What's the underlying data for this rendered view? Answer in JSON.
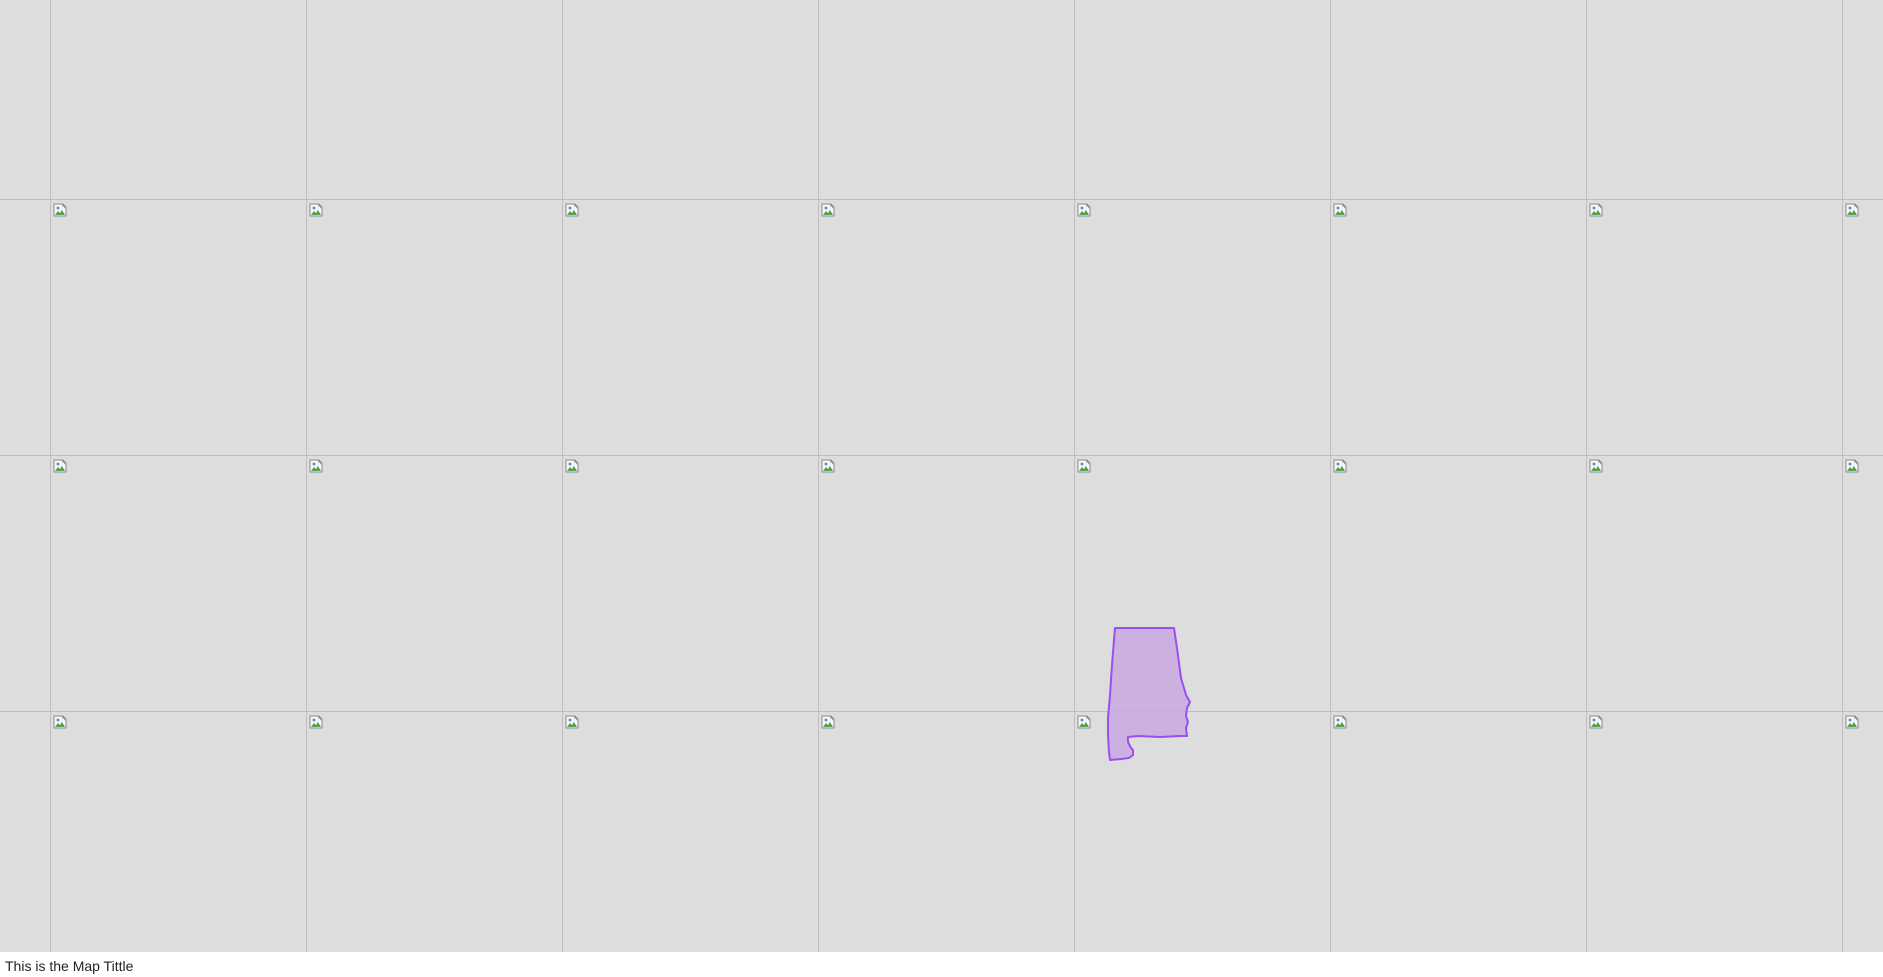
{
  "map": {
    "title": "This is the Map Tittle",
    "background_color": "#dddddd",
    "tile_border_color": "#bdbdbd",
    "tile_image_state": "broken-image-icon",
    "regions": [
      {
        "name": "Alabama",
        "fill_color": "#c8a8e0",
        "stroke_color": "#9a4ff0"
      }
    ]
  }
}
